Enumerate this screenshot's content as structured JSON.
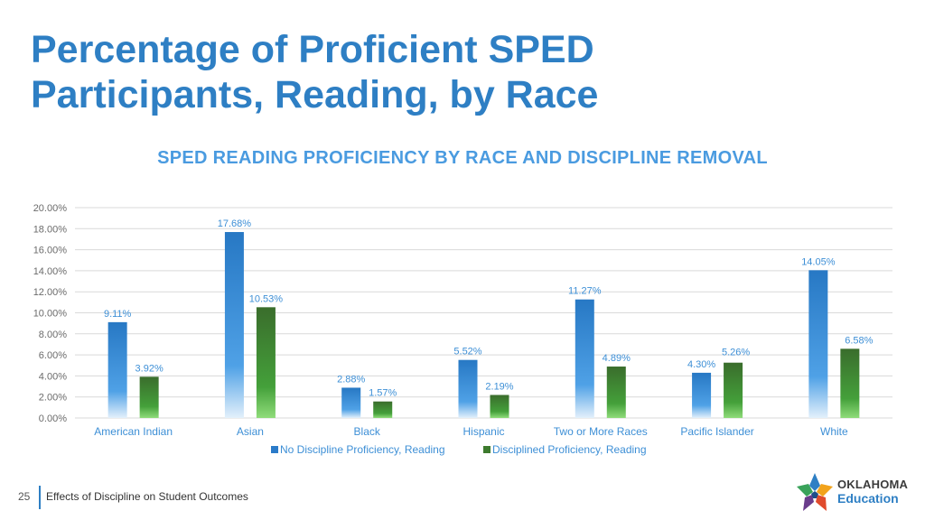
{
  "slide": {
    "title": "Percentage of Proficient SPED Participants, Reading, by Race",
    "page_number": "25",
    "footer_text": "Effects of Discipline on Student Outcomes",
    "logo_line1": "OKLAHOMA",
    "logo_line2": "Education"
  },
  "colors": {
    "title": "#2e7fc4",
    "series1": "#2b7bc9",
    "series2": "#3d7a2e",
    "grid": "#d9d9d9"
  },
  "chart_data": {
    "type": "bar",
    "title": "SPED READING PROFICIENCY BY RACE AND DISCIPLINE REMOVAL",
    "categories": [
      "American Indian",
      "Asian",
      "Black",
      "Hispanic",
      "Two or More Races",
      "Pacific Islander",
      "White"
    ],
    "series": [
      {
        "name": "No Discipline Proficiency, Reading",
        "values": [
          9.11,
          17.68,
          2.88,
          5.52,
          11.27,
          4.3,
          14.05
        ],
        "labels": [
          "9.11%",
          "17.68%",
          "2.88%",
          "5.52%",
          "11.27%",
          "4.30%",
          "14.05%"
        ]
      },
      {
        "name": "Disciplined Proficiency, Reading",
        "values": [
          3.92,
          10.53,
          1.57,
          2.19,
          4.89,
          5.26,
          6.58
        ],
        "labels": [
          "3.92%",
          "10.53%",
          "1.57%",
          "2.19%",
          "4.89%",
          "5.26%",
          "6.58%"
        ]
      }
    ],
    "ylim": [
      0,
      20
    ],
    "yticks": [
      0,
      2,
      4,
      6,
      8,
      10,
      12,
      14,
      16,
      18,
      20
    ],
    "ytick_labels": [
      "0.00%",
      "2.00%",
      "4.00%",
      "6.00%",
      "8.00%",
      "10.00%",
      "12.00%",
      "14.00%",
      "16.00%",
      "18.00%",
      "20.00%"
    ],
    "legend_position": "bottom",
    "grid": true
  }
}
